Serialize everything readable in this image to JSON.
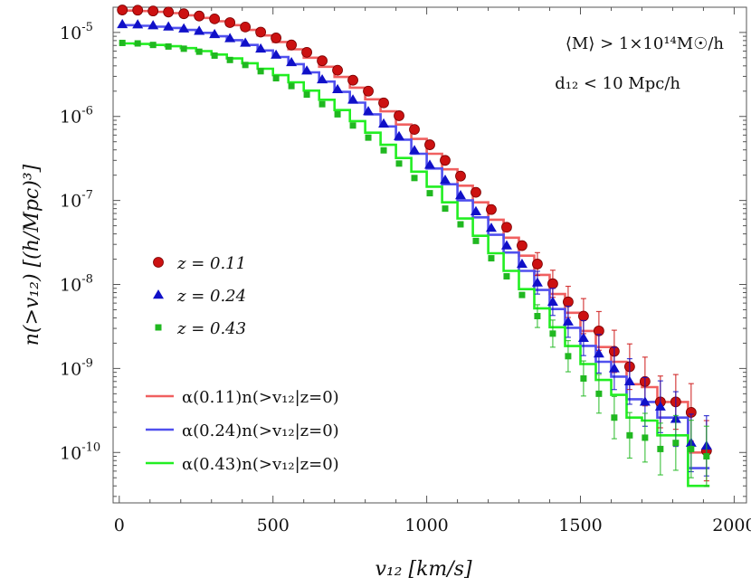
{
  "chart_data": {
    "type": "scatter",
    "xlabel": "v₁₂ [km/s]",
    "ylabel": "n(>v₁₂)   [(h/Mpc)³]",
    "xlim": [
      -20,
      2040
    ],
    "ylim_log10": [
      -10.6,
      -4.7
    ],
    "y_scale": "log",
    "x_ticks": [
      0,
      500,
      1000,
      1500,
      2000
    ],
    "x_tick_labels": [
      "0",
      "500",
      "1000",
      "1500",
      "2000"
    ],
    "y_ticks_log10": [
      -5,
      -6,
      -7,
      -8,
      -9,
      -10
    ],
    "y_tick_labels": [
      "-5",
      "-6",
      "-7",
      "-8",
      "-9",
      "-10"
    ],
    "y_tick_base": "10",
    "annotations": {
      "mass_cut": "⟨M⟩ > 1×10¹⁴M☉/h",
      "distance_cut": "d₁₂ < 10 Mpc/h"
    },
    "legend_markers_position": "middle-left",
    "legend_lines_position": "bottom-left",
    "series": [
      {
        "name": "z = 0.11",
        "kind": "points",
        "marker": "circle",
        "color": "#cc1111",
        "x": [
          10,
          60,
          110,
          160,
          210,
          260,
          310,
          360,
          410,
          460,
          510,
          560,
          610,
          660,
          710,
          760,
          810,
          860,
          910,
          960,
          1010,
          1060,
          1110,
          1160,
          1210,
          1260,
          1310,
          1360,
          1410,
          1460,
          1510,
          1560,
          1610,
          1660,
          1710,
          1760,
          1810,
          1860,
          1910
        ],
        "y": [
          1.85e-05,
          1.84e-05,
          1.8e-05,
          1.75e-05,
          1.67e-05,
          1.57e-05,
          1.45e-05,
          1.31e-05,
          1.16e-05,
          1.01e-05,
          8.6e-06,
          7.1e-06,
          5.8e-06,
          4.6e-06,
          3.55e-06,
          2.7e-06,
          2e-06,
          1.45e-06,
          1.02e-06,
          7e-07,
          4.6e-07,
          3e-07,
          1.95e-07,
          1.25e-07,
          7.8e-08,
          4.8e-08,
          2.9e-08,
          1.75e-08,
          1.02e-08,
          6.2e-09,
          4.2e-09,
          2.8e-09,
          1.6e-09,
          1.05e-09,
          7e-10,
          4e-10,
          4e-10,
          3e-10,
          1.05e-10
        ]
      },
      {
        "name": "z = 0.24",
        "kind": "points",
        "marker": "triangle",
        "color": "#1010c8",
        "x": [
          10,
          60,
          110,
          160,
          210,
          260,
          310,
          360,
          410,
          460,
          510,
          560,
          610,
          660,
          710,
          760,
          810,
          860,
          910,
          960,
          1010,
          1060,
          1110,
          1160,
          1210,
          1260,
          1310,
          1360,
          1410,
          1460,
          1510,
          1560,
          1610,
          1660,
          1710,
          1760,
          1810,
          1860,
          1910
        ],
        "y": [
          1.25e-05,
          1.24e-05,
          1.21e-05,
          1.17e-05,
          1.11e-05,
          1.04e-05,
          9.5e-06,
          8.5e-06,
          7.5e-06,
          6.4e-06,
          5.4e-06,
          4.4e-06,
          3.5e-06,
          2.75e-06,
          2.1e-06,
          1.58e-06,
          1.15e-06,
          8.2e-07,
          5.8e-07,
          3.95e-07,
          2.65e-07,
          1.75e-07,
          1.15e-07,
          7.4e-08,
          4.7e-08,
          2.9e-08,
          1.75e-08,
          1.05e-08,
          6.2e-09,
          3.6e-09,
          2.3e-09,
          1.5e-09,
          1e-09,
          7e-10,
          4e-10,
          3.5e-10,
          2.5e-10,
          1.3e-10,
          1.2e-10
        ]
      },
      {
        "name": "z = 0.43",
        "kind": "points",
        "marker": "square",
        "color": "#20b820",
        "x": [
          10,
          60,
          110,
          160,
          210,
          260,
          310,
          360,
          410,
          460,
          510,
          560,
          610,
          660,
          710,
          760,
          810,
          860,
          910,
          960,
          1010,
          1060,
          1110,
          1160,
          1210,
          1260,
          1310,
          1360,
          1410,
          1460,
          1510,
          1560,
          1610,
          1660,
          1710,
          1760,
          1810,
          1860,
          1910
        ],
        "y": [
          7.5e-06,
          7.4e-06,
          7.1e-06,
          6.8e-06,
          6.4e-06,
          5.9e-06,
          5.3e-06,
          4.7e-06,
          4.1e-06,
          3.45e-06,
          2.85e-06,
          2.3e-06,
          1.82e-06,
          1.4e-06,
          1.06e-06,
          7.8e-07,
          5.6e-07,
          3.95e-07,
          2.75e-07,
          1.85e-07,
          1.22e-07,
          8e-08,
          5.2e-08,
          3.3e-08,
          2.05e-08,
          1.25e-08,
          7.5e-09,
          4.2e-09,
          2.6e-09,
          1.4e-09,
          7.6e-10,
          5e-10,
          2.6e-10,
          1.6e-10,
          1.5e-10,
          1.1e-10,
          1.3e-10,
          1.1e-10,
          9e-11
        ],
        "yerr_low": [
          0,
          0,
          0,
          0,
          0,
          0,
          0,
          0,
          0,
          0,
          0,
          0,
          0,
          0,
          0,
          0,
          0,
          0,
          0,
          0,
          0,
          0,
          0,
          0,
          0,
          0,
          0,
          0,
          0,
          0,
          0,
          0,
          0,
          0,
          0,
          0,
          0,
          0,
          0
        ],
        "yerr_high": [
          0,
          0,
          0,
          0,
          0,
          0,
          0,
          0,
          0,
          0,
          0,
          0,
          0,
          0,
          0,
          0,
          0,
          0,
          0,
          0,
          0,
          0,
          0,
          0,
          0,
          0,
          0,
          0,
          0,
          0,
          0,
          0,
          0,
          0,
          0,
          0,
          0,
          0,
          0
        ]
      },
      {
        "name": "α(0.11)n(>v₁₂|z=0)",
        "kind": "step",
        "color": "#f06060",
        "x_edges": [
          0,
          50,
          100,
          150,
          200,
          250,
          300,
          350,
          400,
          450,
          500,
          550,
          600,
          650,
          700,
          750,
          800,
          850,
          900,
          950,
          1000,
          1050,
          1100,
          1150,
          1200,
          1250,
          1300,
          1350,
          1400,
          1450,
          1500,
          1550,
          1600,
          1650,
          1700,
          1750,
          1800,
          1850,
          1900,
          1920
        ],
        "y": [
          1.82e-05,
          1.8e-05,
          1.76e-05,
          1.7e-05,
          1.6e-05,
          1.49e-05,
          1.36e-05,
          1.22e-05,
          1.07e-05,
          9.2e-06,
          7.7e-06,
          6.3e-06,
          5e-06,
          3.9e-06,
          2.95e-06,
          2.2e-06,
          1.6e-06,
          1.15e-06,
          8e-07,
          5.4e-07,
          3.6e-07,
          2.35e-07,
          1.5e-07,
          9.5e-08,
          5.9e-08,
          3.6e-08,
          2.2e-08,
          1.3e-08,
          7.7e-09,
          4.6e-09,
          2.8e-09,
          1.8e-09,
          1.2e-09,
          6.5e-10,
          6e-10,
          4e-10,
          4e-10,
          1e-10,
          1e-10
        ]
      },
      {
        "name": "α(0.24)n(>v₁₂|z=0)",
        "kind": "step",
        "color": "#5050ee",
        "x_edges": [
          0,
          50,
          100,
          150,
          200,
          250,
          300,
          350,
          400,
          450,
          500,
          550,
          600,
          650,
          700,
          750,
          800,
          850,
          900,
          950,
          1000,
          1050,
          1100,
          1150,
          1200,
          1250,
          1300,
          1350,
          1400,
          1450,
          1500,
          1550,
          1600,
          1650,
          1700,
          1750,
          1800,
          1850,
          1900,
          1920
        ],
        "y": [
          1.22e-05,
          1.2e-05,
          1.17e-05,
          1.13e-05,
          1.07e-05,
          9.9e-06,
          9e-06,
          8.1e-06,
          7.1e-06,
          6.1e-06,
          5.1e-06,
          4.2e-06,
          3.35e-06,
          2.6e-06,
          1.96e-06,
          1.46e-06,
          1.06e-06,
          7.6e-07,
          5.3e-07,
          3.6e-07,
          2.4e-07,
          1.56e-07,
          1e-07,
          6.3e-08,
          3.9e-08,
          2.4e-08,
          1.45e-08,
          8.6e-09,
          5.1e-09,
          3.05e-09,
          1.86e-09,
          1.2e-09,
          8e-10,
          4.3e-10,
          4e-10,
          2.6e-10,
          2.6e-10,
          6.5e-11,
          6.5e-11
        ]
      },
      {
        "name": "α(0.43)n(>v₁₂|z=0)",
        "kind": "step",
        "color": "#22ee22",
        "x_edges": [
          0,
          50,
          100,
          150,
          200,
          250,
          300,
          350,
          400,
          450,
          500,
          550,
          600,
          650,
          700,
          750,
          800,
          850,
          900,
          950,
          1000,
          1050,
          1100,
          1150,
          1200,
          1250,
          1300,
          1350,
          1400,
          1450,
          1500,
          1550,
          1600,
          1650,
          1700,
          1750,
          1800,
          1850,
          1900,
          1920
        ],
        "y": [
          7.4e-06,
          7.3e-06,
          7.1e-06,
          6.85e-06,
          6.5e-06,
          6e-06,
          5.45e-06,
          4.9e-06,
          4.3e-06,
          3.7e-06,
          3.1e-06,
          2.55e-06,
          2.03e-06,
          1.58e-06,
          1.19e-06,
          8.8e-07,
          6.4e-07,
          4.6e-07,
          3.2e-07,
          2.2e-07,
          1.46e-07,
          9.5e-08,
          6.1e-08,
          3.8e-08,
          2.35e-08,
          1.45e-08,
          8.8e-09,
          5.2e-09,
          3.1e-09,
          1.85e-09,
          1.13e-09,
          7.3e-10,
          4.85e-10,
          2.6e-10,
          2.4e-10,
          1.6e-10,
          1.6e-10,
          4e-11,
          4e-11
        ]
      }
    ]
  }
}
